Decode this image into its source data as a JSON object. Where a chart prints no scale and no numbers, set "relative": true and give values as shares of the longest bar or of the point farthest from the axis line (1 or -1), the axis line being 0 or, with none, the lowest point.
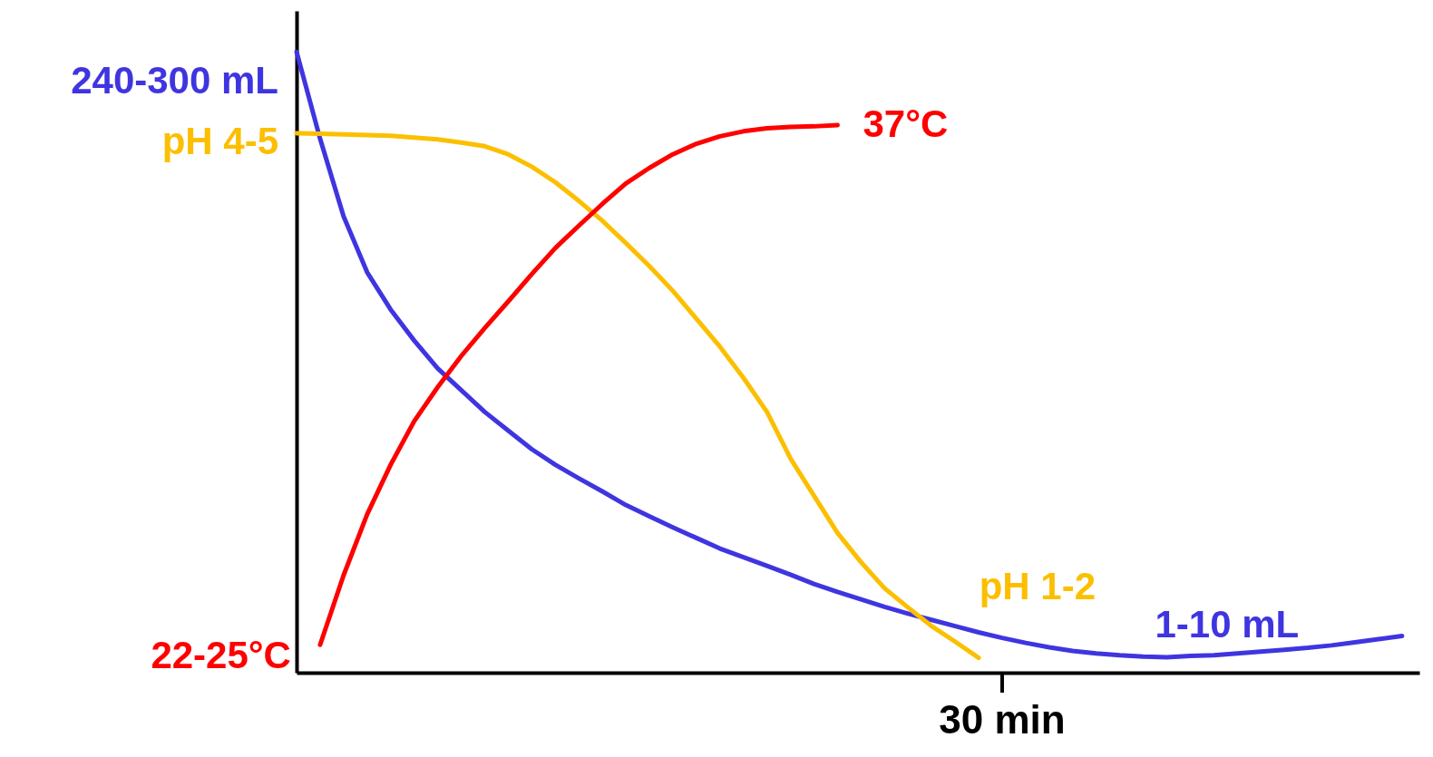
{
  "chart_data": {
    "type": "line",
    "relative": true,
    "categories": [
      null,
      null,
      null,
      null,
      null,
      null,
      null,
      null,
      null,
      null,
      null,
      null,
      null,
      null,
      null,
      null,
      null,
      null,
      null,
      null,
      null,
      null,
      null,
      null,
      null,
      null,
      null,
      null,
      null,
      null,
      null,
      null,
      null,
      null,
      null,
      null,
      null,
      null,
      null,
      null,
      null,
      null,
      null,
      null,
      null,
      null,
      null,
      null
    ],
    "series": [
      {
        "color": "#3f35e0",
        "values": [
          1.0,
          0.86,
          0.735,
          0.645,
          0.585,
          0.535,
          0.49,
          0.455,
          0.42,
          0.39,
          0.36,
          0.335,
          0.313,
          0.292,
          0.27,
          0.252,
          0.234,
          0.217,
          0.2,
          0.186,
          0.172,
          0.158,
          0.143,
          0.13,
          0.118,
          0.106,
          0.095,
          0.085,
          0.075,
          0.065,
          0.056,
          0.048,
          0.041,
          0.035,
          0.031,
          0.028,
          0.026,
          0.025,
          0.027,
          0.028,
          0.031,
          0.034,
          0.037,
          0.04,
          0.044,
          0.049,
          0.054,
          0.059
        ]
      },
      {
        "color": "#fcbf00",
        "values": [
          0.869,
          0.868,
          0.867,
          0.866,
          0.865,
          0.862,
          0.859,
          0.854,
          0.848,
          0.835,
          0.815,
          0.79,
          0.76,
          0.728,
          0.692,
          0.655,
          0.615,
          0.57,
          0.525,
          0.475,
          0.42,
          0.345,
          0.285,
          0.225,
          0.178,
          0.136,
          0.105,
          0.075,
          0.05,
          0.024,
          null,
          null,
          null,
          null,
          null,
          null,
          null,
          null,
          null,
          null,
          null,
          null,
          null,
          null,
          null,
          null,
          null,
          null
        ]
      },
      {
        "color": "#ff0000",
        "values": [
          null,
          0.045,
          0.157,
          0.255,
          0.335,
          0.405,
          0.46,
          0.51,
          0.555,
          0.598,
          0.642,
          0.684,
          0.72,
          0.755,
          0.788,
          0.813,
          0.835,
          0.852,
          0.864,
          0.872,
          0.877,
          0.879,
          0.88,
          0.882,
          null,
          null,
          null,
          null,
          null,
          null,
          null,
          null,
          null,
          null,
          null,
          null,
          null,
          null,
          null,
          null,
          null,
          null,
          null,
          null,
          null,
          null,
          null,
          null
        ]
      }
    ],
    "annotations": [
      "240-300 mL",
      "pH 4-5",
      "37°C",
      "22-25°C",
      "pH 1-2",
      "1-10 mL",
      "30 min"
    ],
    "marker": "none",
    "line_style": "solid"
  }
}
